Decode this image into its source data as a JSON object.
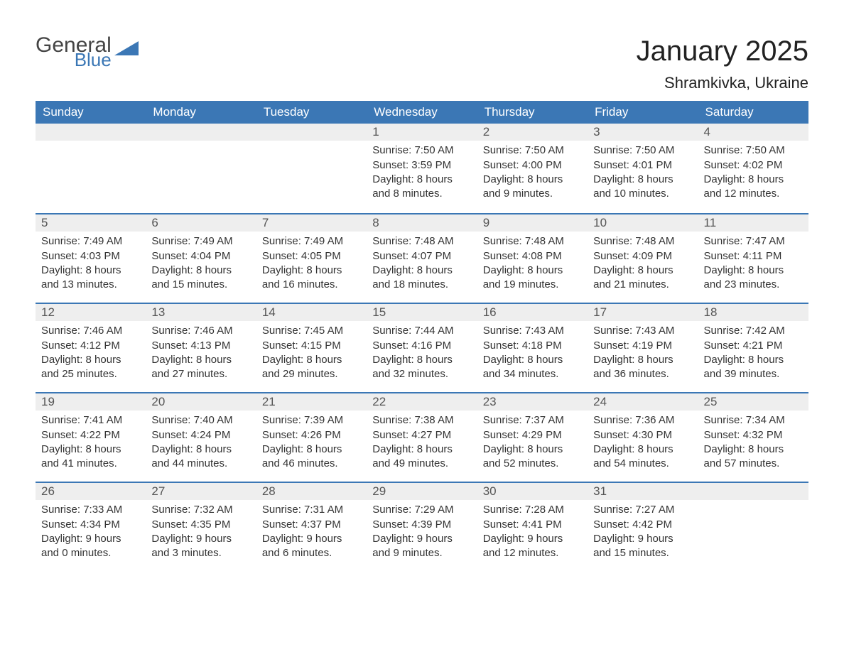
{
  "logo": {
    "general": "General",
    "blue": "Blue",
    "shape_color": "#3b77b5"
  },
  "title": "January 2025",
  "location": "Shramkivka, Ukraine",
  "colors": {
    "header_bg": "#3b77b5",
    "header_text": "#ffffff",
    "daynum_bg": "#eeeeee",
    "border_top": "#3b77b5",
    "body_bg": "#ffffff",
    "text": "#333333"
  },
  "typography": {
    "title_fontsize": 40,
    "location_fontsize": 22,
    "th_fontsize": 17,
    "cell_fontsize": 15
  },
  "weekdays": [
    "Sunday",
    "Monday",
    "Tuesday",
    "Wednesday",
    "Thursday",
    "Friday",
    "Saturday"
  ],
  "weeks": [
    [
      {
        "day": "",
        "lines": []
      },
      {
        "day": "",
        "lines": []
      },
      {
        "day": "",
        "lines": []
      },
      {
        "day": "1",
        "lines": [
          "Sunrise: 7:50 AM",
          "Sunset: 3:59 PM",
          "Daylight: 8 hours and 8 minutes."
        ]
      },
      {
        "day": "2",
        "lines": [
          "Sunrise: 7:50 AM",
          "Sunset: 4:00 PM",
          "Daylight: 8 hours and 9 minutes."
        ]
      },
      {
        "day": "3",
        "lines": [
          "Sunrise: 7:50 AM",
          "Sunset: 4:01 PM",
          "Daylight: 8 hours and 10 minutes."
        ]
      },
      {
        "day": "4",
        "lines": [
          "Sunrise: 7:50 AM",
          "Sunset: 4:02 PM",
          "Daylight: 8 hours and 12 minutes."
        ]
      }
    ],
    [
      {
        "day": "5",
        "lines": [
          "Sunrise: 7:49 AM",
          "Sunset: 4:03 PM",
          "Daylight: 8 hours and 13 minutes."
        ]
      },
      {
        "day": "6",
        "lines": [
          "Sunrise: 7:49 AM",
          "Sunset: 4:04 PM",
          "Daylight: 8 hours and 15 minutes."
        ]
      },
      {
        "day": "7",
        "lines": [
          "Sunrise: 7:49 AM",
          "Sunset: 4:05 PM",
          "Daylight: 8 hours and 16 minutes."
        ]
      },
      {
        "day": "8",
        "lines": [
          "Sunrise: 7:48 AM",
          "Sunset: 4:07 PM",
          "Daylight: 8 hours and 18 minutes."
        ]
      },
      {
        "day": "9",
        "lines": [
          "Sunrise: 7:48 AM",
          "Sunset: 4:08 PM",
          "Daylight: 8 hours and 19 minutes."
        ]
      },
      {
        "day": "10",
        "lines": [
          "Sunrise: 7:48 AM",
          "Sunset: 4:09 PM",
          "Daylight: 8 hours and 21 minutes."
        ]
      },
      {
        "day": "11",
        "lines": [
          "Sunrise: 7:47 AM",
          "Sunset: 4:11 PM",
          "Daylight: 8 hours and 23 minutes."
        ]
      }
    ],
    [
      {
        "day": "12",
        "lines": [
          "Sunrise: 7:46 AM",
          "Sunset: 4:12 PM",
          "Daylight: 8 hours and 25 minutes."
        ]
      },
      {
        "day": "13",
        "lines": [
          "Sunrise: 7:46 AM",
          "Sunset: 4:13 PM",
          "Daylight: 8 hours and 27 minutes."
        ]
      },
      {
        "day": "14",
        "lines": [
          "Sunrise: 7:45 AM",
          "Sunset: 4:15 PM",
          "Daylight: 8 hours and 29 minutes."
        ]
      },
      {
        "day": "15",
        "lines": [
          "Sunrise: 7:44 AM",
          "Sunset: 4:16 PM",
          "Daylight: 8 hours and 32 minutes."
        ]
      },
      {
        "day": "16",
        "lines": [
          "Sunrise: 7:43 AM",
          "Sunset: 4:18 PM",
          "Daylight: 8 hours and 34 minutes."
        ]
      },
      {
        "day": "17",
        "lines": [
          "Sunrise: 7:43 AM",
          "Sunset: 4:19 PM",
          "Daylight: 8 hours and 36 minutes."
        ]
      },
      {
        "day": "18",
        "lines": [
          "Sunrise: 7:42 AM",
          "Sunset: 4:21 PM",
          "Daylight: 8 hours and 39 minutes."
        ]
      }
    ],
    [
      {
        "day": "19",
        "lines": [
          "Sunrise: 7:41 AM",
          "Sunset: 4:22 PM",
          "Daylight: 8 hours and 41 minutes."
        ]
      },
      {
        "day": "20",
        "lines": [
          "Sunrise: 7:40 AM",
          "Sunset: 4:24 PM",
          "Daylight: 8 hours and 44 minutes."
        ]
      },
      {
        "day": "21",
        "lines": [
          "Sunrise: 7:39 AM",
          "Sunset: 4:26 PM",
          "Daylight: 8 hours and 46 minutes."
        ]
      },
      {
        "day": "22",
        "lines": [
          "Sunrise: 7:38 AM",
          "Sunset: 4:27 PM",
          "Daylight: 8 hours and 49 minutes."
        ]
      },
      {
        "day": "23",
        "lines": [
          "Sunrise: 7:37 AM",
          "Sunset: 4:29 PM",
          "Daylight: 8 hours and 52 minutes."
        ]
      },
      {
        "day": "24",
        "lines": [
          "Sunrise: 7:36 AM",
          "Sunset: 4:30 PM",
          "Daylight: 8 hours and 54 minutes."
        ]
      },
      {
        "day": "25",
        "lines": [
          "Sunrise: 7:34 AM",
          "Sunset: 4:32 PM",
          "Daylight: 8 hours and 57 minutes."
        ]
      }
    ],
    [
      {
        "day": "26",
        "lines": [
          "Sunrise: 7:33 AM",
          "Sunset: 4:34 PM",
          "Daylight: 9 hours and 0 minutes."
        ]
      },
      {
        "day": "27",
        "lines": [
          "Sunrise: 7:32 AM",
          "Sunset: 4:35 PM",
          "Daylight: 9 hours and 3 minutes."
        ]
      },
      {
        "day": "28",
        "lines": [
          "Sunrise: 7:31 AM",
          "Sunset: 4:37 PM",
          "Daylight: 9 hours and 6 minutes."
        ]
      },
      {
        "day": "29",
        "lines": [
          "Sunrise: 7:29 AM",
          "Sunset: 4:39 PM",
          "Daylight: 9 hours and 9 minutes."
        ]
      },
      {
        "day": "30",
        "lines": [
          "Sunrise: 7:28 AM",
          "Sunset: 4:41 PM",
          "Daylight: 9 hours and 12 minutes."
        ]
      },
      {
        "day": "31",
        "lines": [
          "Sunrise: 7:27 AM",
          "Sunset: 4:42 PM",
          "Daylight: 9 hours and 15 minutes."
        ]
      },
      {
        "day": "",
        "lines": []
      }
    ]
  ]
}
